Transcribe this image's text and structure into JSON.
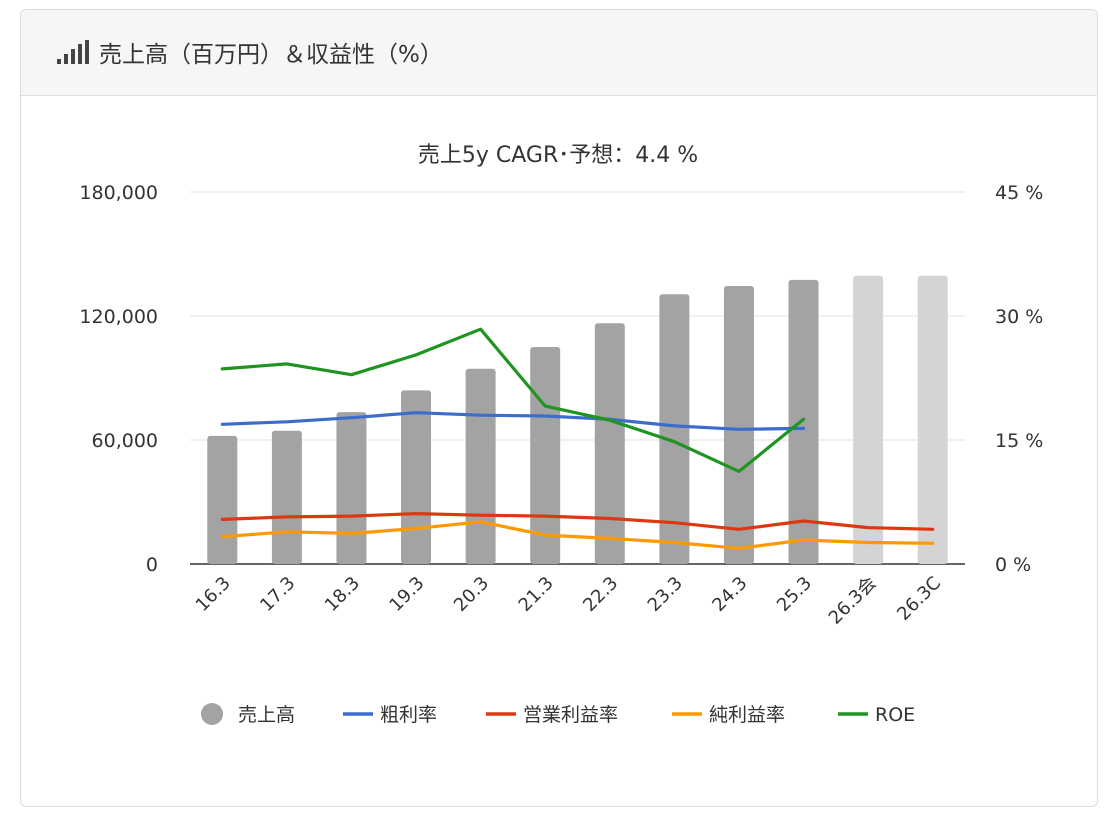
{
  "header": {
    "title": "売上高（百万円）＆収益性（%）",
    "icon": "signal-bars-icon"
  },
  "chart_data": {
    "type": "bar",
    "title": "売上5y CAGR･予想：4.4 %",
    "categories": [
      "16.3",
      "17.3",
      "18.3",
      "19.3",
      "20.3",
      "21.3",
      "22.3",
      "23.3",
      "24.3",
      "25.3",
      "26.3会",
      "26.3C"
    ],
    "left_axis": {
      "min": 0,
      "max": 180000,
      "ticks": [
        "0",
        "60,000",
        "120,000",
        "180,000"
      ],
      "tick_values": [
        0,
        60000,
        120000,
        180000
      ]
    },
    "right_axis": {
      "min": 0,
      "max": 45,
      "ticks": [
        "0 %",
        "15 %",
        "30 %",
        "45 %"
      ],
      "tick_values": [
        0,
        15,
        30,
        45
      ]
    },
    "grid": true,
    "legend_position": "bottom",
    "bars": {
      "name": "売上高",
      "values": [
        62000,
        64500,
        73500,
        84000,
        94500,
        105000,
        116500,
        130500,
        134500,
        137500,
        139500,
        139500
      ],
      "color": "#a3a3a3",
      "forecast_color": "#d4d4d4",
      "forecast_from_index": 10
    },
    "series": [
      {
        "name": "粗利率",
        "color": "#3c6dcc",
        "values": [
          16.9,
          17.2,
          17.7,
          18.3,
          18.0,
          17.9,
          17.5,
          16.7,
          16.3,
          16.4,
          null,
          null
        ]
      },
      {
        "name": "営業利益率",
        "color": "#dc3912",
        "values": [
          5.4,
          5.7,
          5.8,
          6.1,
          5.9,
          5.8,
          5.5,
          5.0,
          4.2,
          5.2,
          4.4,
          4.2
        ]
      },
      {
        "name": "純利益率",
        "color": "#ff9900",
        "values": [
          3.3,
          3.9,
          3.7,
          4.3,
          5.1,
          3.5,
          3.1,
          2.6,
          1.9,
          2.9,
          2.6,
          2.5
        ]
      },
      {
        "name": "ROE",
        "color": "#1f9420",
        "values": [
          23.6,
          24.2,
          22.9,
          25.3,
          28.4,
          19.1,
          17.4,
          14.8,
          11.2,
          17.5,
          null,
          null
        ]
      }
    ]
  }
}
